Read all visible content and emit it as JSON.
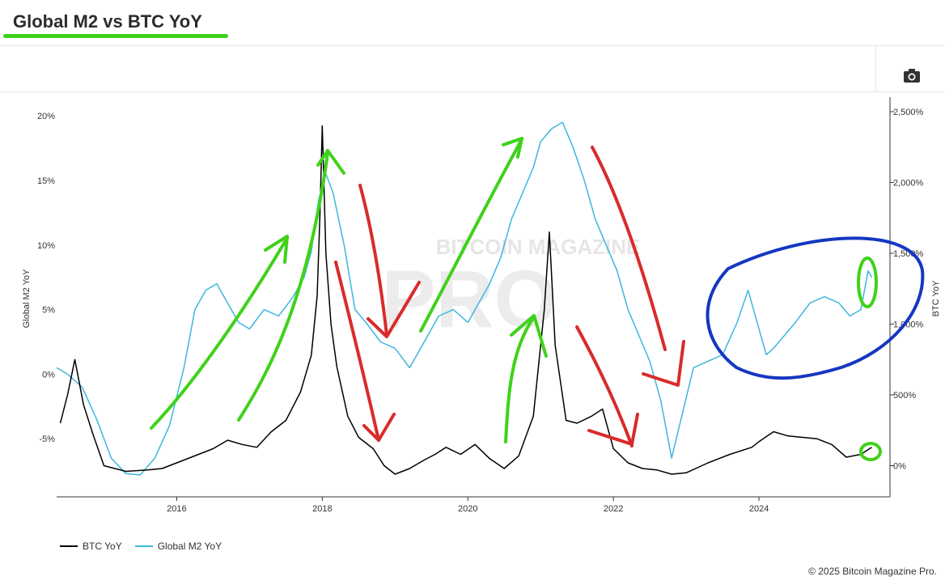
{
  "header": {
    "title": "Global M2 vs BTC YoY"
  },
  "toolbar": {
    "camera_icon": "camera-icon"
  },
  "footer": {
    "copyright": "© 2025 Bitcoin Magazine Pro."
  },
  "watermark": "BITCOIN MAGAZINE PRO",
  "colors": {
    "btc": "#000000",
    "m2": "#3eb6df",
    "green": "#3fd21a",
    "red": "#d92b2b",
    "blue": "#1637c2",
    "accent": "#3fd21a"
  },
  "chart_data": {
    "type": "line",
    "xlabel": "",
    "ylabel_left": "Global M2 YoY",
    "ylabel_right": "BTC YoY",
    "x_ticks": [
      "2016",
      "2018",
      "2020",
      "2022",
      "2024"
    ],
    "x_tick_values": [
      2016,
      2018,
      2020,
      2022,
      2024
    ],
    "xlim": [
      2014.35,
      2025.8
    ],
    "y_left_ticks": [
      "20%",
      "15%",
      "10%",
      "5%",
      "0%",
      "-5%"
    ],
    "y_left_tick_values": [
      20,
      15,
      10,
      5,
      0,
      -5
    ],
    "y_left_lim": [
      -9.5,
      21.2
    ],
    "y_right_ticks": [
      "2,500%",
      "2,000%",
      "1,500%",
      "1,000%",
      "500%",
      "0%"
    ],
    "y_right_tick_values": [
      2500,
      2000,
      1500,
      1000,
      500,
      0
    ],
    "y_right_lim": [
      -220,
      2580
    ],
    "legend": [
      "BTC YoY",
      "Global M2 YoY"
    ],
    "legend_position": "bottom-left",
    "series": [
      {
        "name": "BTC YoY",
        "axis": "right",
        "x": [
          2014.4,
          2014.5,
          2014.6,
          2014.72,
          2014.85,
          2015.0,
          2015.3,
          2015.6,
          2015.8,
          2016.0,
          2016.3,
          2016.5,
          2016.7,
          2016.9,
          2017.1,
          2017.3,
          2017.5,
          2017.7,
          2017.85,
          2017.93,
          2017.97,
          2018.0,
          2018.05,
          2018.12,
          2018.2,
          2018.35,
          2018.5,
          2018.7,
          2018.85,
          2019.0,
          2019.2,
          2019.4,
          2019.55,
          2019.7,
          2019.9,
          2020.1,
          2020.3,
          2020.5,
          2020.7,
          2020.9,
          2021.05,
          2021.12,
          2021.2,
          2021.35,
          2021.5,
          2021.7,
          2021.85,
          2022.0,
          2022.2,
          2022.4,
          2022.6,
          2022.8,
          2023.0,
          2023.3,
          2023.6,
          2023.9,
          2024.0,
          2024.2,
          2024.4,
          2024.6,
          2024.8,
          2025.0,
          2025.2,
          2025.4,
          2025.55
        ],
        "y": [
          300,
          500,
          750,
          430,
          220,
          0,
          -40,
          -30,
          -20,
          20,
          80,
          120,
          180,
          150,
          130,
          240,
          320,
          520,
          780,
          1200,
          1800,
          2400,
          1500,
          1000,
          700,
          350,
          200,
          120,
          0,
          -60,
          -20,
          40,
          80,
          130,
          80,
          150,
          50,
          -20,
          70,
          350,
          1100,
          1650,
          850,
          320,
          300,
          350,
          400,
          120,
          20,
          -20,
          -30,
          -60,
          -50,
          20,
          80,
          130,
          170,
          240,
          210,
          200,
          190,
          150,
          60,
          80,
          130
        ]
      },
      {
        "name": "Global M2 YoY",
        "axis": "left",
        "x": [
          2014.35,
          2014.5,
          2014.7,
          2014.9,
          2015.1,
          2015.3,
          2015.5,
          2015.7,
          2015.9,
          2016.1,
          2016.25,
          2016.4,
          2016.55,
          2016.7,
          2016.85,
          2017.0,
          2017.2,
          2017.4,
          2017.6,
          2017.75,
          2017.85,
          2017.95,
          2018.05,
          2018.15,
          2018.3,
          2018.45,
          2018.6,
          2018.8,
          2019.0,
          2019.2,
          2019.4,
          2019.6,
          2019.8,
          2020.0,
          2020.15,
          2020.3,
          2020.45,
          2020.6,
          2020.75,
          2020.9,
          2021.0,
          2021.15,
          2021.3,
          2021.45,
          2021.6,
          2021.75,
          2021.9,
          2022.05,
          2022.2,
          2022.35,
          2022.5,
          2022.65,
          2022.8,
          2022.95,
          2023.1,
          2023.3,
          2023.5,
          2023.7,
          2023.85,
          2024.0,
          2024.1,
          2024.2,
          2024.35,
          2024.5,
          2024.7,
          2024.9,
          2025.1,
          2025.25,
          2025.4,
          2025.5,
          2025.55
        ],
        "y": [
          0.5,
          0,
          -1,
          -3.5,
          -6.5,
          -7.7,
          -7.8,
          -6.5,
          -4.0,
          0.5,
          5.0,
          6.5,
          7.0,
          5.5,
          4.0,
          3.5,
          5.0,
          4.5,
          6.0,
          7.5,
          9.5,
          13.5,
          15.5,
          14.0,
          10.0,
          5.0,
          4.0,
          2.5,
          2.0,
          0.5,
          2.5,
          4.5,
          5.0,
          4.0,
          5.5,
          7.0,
          9.0,
          12.0,
          14.0,
          16.0,
          18.0,
          19.0,
          19.5,
          17.5,
          15.0,
          12.0,
          10.0,
          8.0,
          5.0,
          3.0,
          1.0,
          -2.0,
          -6.5,
          -3.0,
          0.5,
          1.0,
          1.5,
          4.0,
          6.5,
          3.5,
          1.5,
          2.0,
          3.0,
          4.0,
          5.5,
          6.0,
          5.5,
          4.5,
          5.0,
          8.0,
          7.5
        ]
      }
    ],
    "annotations": [
      {
        "type": "arrow",
        "color": "green",
        "direction": "up",
        "description": "rise"
      },
      {
        "type": "arrow",
        "color": "red",
        "direction": "down",
        "description": "fall"
      },
      {
        "type": "ellipse",
        "color": "blue",
        "description": "recent M2 rise"
      },
      {
        "type": "circle",
        "color": "green",
        "description": "current BTC"
      }
    ]
  }
}
